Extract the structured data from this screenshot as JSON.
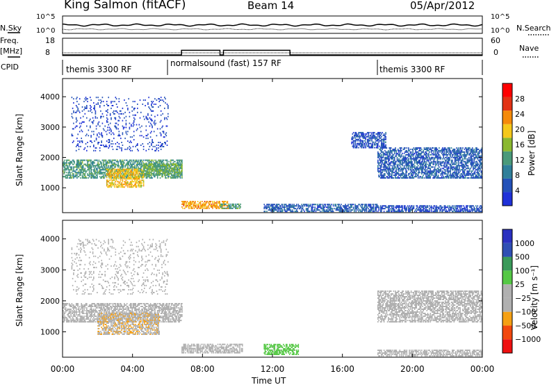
{
  "header": {
    "station": "King Salmon (fitACF)",
    "beam": "Beam 14",
    "date": "05/Apr/2012"
  },
  "strip_labels": {
    "nsky": "N.Sky",
    "nsearch": "N.Search",
    "freq_top": "Freq.",
    "freq_unit": "[MHz]",
    "nave": "Nave",
    "cpid": "CPID",
    "nsky_ticks": [
      "10^5",
      "10^0"
    ],
    "nsearch_ticks": [
      "10^5",
      "10^0"
    ],
    "freq_ticks": [
      "18",
      "8"
    ],
    "nave_ticks": [
      "60",
      "0"
    ]
  },
  "cpid_segments": [
    {
      "label": "themis 3300 RF",
      "start_h": 0,
      "end_h": 6
    },
    {
      "label": "normalsound (fast) 157 RF",
      "start_h": 6,
      "end_h": 18
    },
    {
      "label": "themis 3300 RF",
      "start_h": 18,
      "end_h": 24
    }
  ],
  "x_axis": {
    "label": "Time UT",
    "ticks": [
      "00:00",
      "04:00",
      "08:00",
      "12:00",
      "16:00",
      "20:00",
      "00:00"
    ],
    "range_h": [
      0,
      24
    ]
  },
  "chart_data": [
    {
      "type": "heatmap",
      "title": "Power",
      "ylabel": "Slant Range [km]",
      "y_ticks": [
        "1000",
        "2000",
        "3000",
        "4000"
      ],
      "ylim": [
        180,
        4600
      ],
      "colorbar": {
        "label": "Power [dB]",
        "ticks": [
          "4",
          "8",
          "12",
          "16",
          "20",
          "24",
          "28"
        ],
        "range": [
          0,
          32
        ]
      },
      "regions": [
        {
          "t": [
            0.0,
            6.8
          ],
          "r": [
            1300,
            1900
          ],
          "v": 12
        },
        {
          "t": [
            2.5,
            4.6
          ],
          "r": [
            1000,
            1600
          ],
          "v": 20
        },
        {
          "t": [
            4.5,
            6.8
          ],
          "r": [
            1400,
            1800
          ],
          "v": 14
        },
        {
          "t": [
            6.8,
            9.5
          ],
          "r": [
            300,
            550
          ],
          "v": 22
        },
        {
          "t": [
            9.0,
            10.2
          ],
          "r": [
            300,
            450
          ],
          "v": 12
        },
        {
          "t": [
            11.5,
            18.0
          ],
          "r": [
            200,
            450
          ],
          "v": 6
        },
        {
          "t": [
            18.0,
            24.0
          ],
          "r": [
            1300,
            2300
          ],
          "v": 6
        },
        {
          "t": [
            16.5,
            18.5
          ],
          "r": [
            2300,
            2800
          ],
          "v": 5
        },
        {
          "t": [
            0.5,
            6.0
          ],
          "r": [
            2200,
            4000
          ],
          "v": 4
        },
        {
          "t": [
            18.0,
            24.0
          ],
          "r": [
            200,
            400
          ],
          "v": 5
        }
      ]
    },
    {
      "type": "heatmap",
      "title": "Velocity",
      "ylabel": "Slant Range [km]",
      "y_ticks": [
        "1000",
        "2000",
        "3000",
        "4000"
      ],
      "ylim": [
        180,
        4600
      ],
      "colorbar": {
        "label": "Velocity [m s⁻¹]",
        "ticks": [
          "1000",
          "500",
          "100",
          "25",
          "−25",
          "−100",
          "−500",
          "−1000"
        ],
        "range": [
          -1000,
          1000
        ]
      },
      "regions": [
        {
          "t": [
            0.0,
            6.8
          ],
          "r": [
            1300,
            1900
          ],
          "v": 0
        },
        {
          "t": [
            2.0,
            5.5
          ],
          "r": [
            900,
            1600
          ],
          "v": -300
        },
        {
          "t": [
            6.8,
            10.3
          ],
          "r": [
            300,
            600
          ],
          "v": -200
        },
        {
          "t": [
            11.5,
            13.5
          ],
          "r": [
            250,
            600
          ],
          "v": 200
        },
        {
          "t": [
            18.0,
            24.0
          ],
          "r": [
            1300,
            2300
          ],
          "v": 0
        },
        {
          "t": [
            18.0,
            24.0
          ],
          "r": [
            200,
            400
          ],
          "v": 0
        },
        {
          "t": [
            0.5,
            6.0
          ],
          "r": [
            2200,
            4000
          ],
          "v": -100
        }
      ]
    }
  ],
  "colors": {
    "power_scale": [
      "#1f31d8",
      "#2351b8",
      "#2f7f9a",
      "#4a9a7a",
      "#8ab82f",
      "#f5c81a",
      "#f58a0a",
      "#e23214",
      "#ff0000"
    ],
    "velocity_scale": [
      "#ee1010",
      "#f2480e",
      "#f5a014",
      "#b0b0b0",
      "#b0b0b0",
      "#55c845",
      "#3a9a5a",
      "#2f4fb4",
      "#2a30c0"
    ]
  }
}
